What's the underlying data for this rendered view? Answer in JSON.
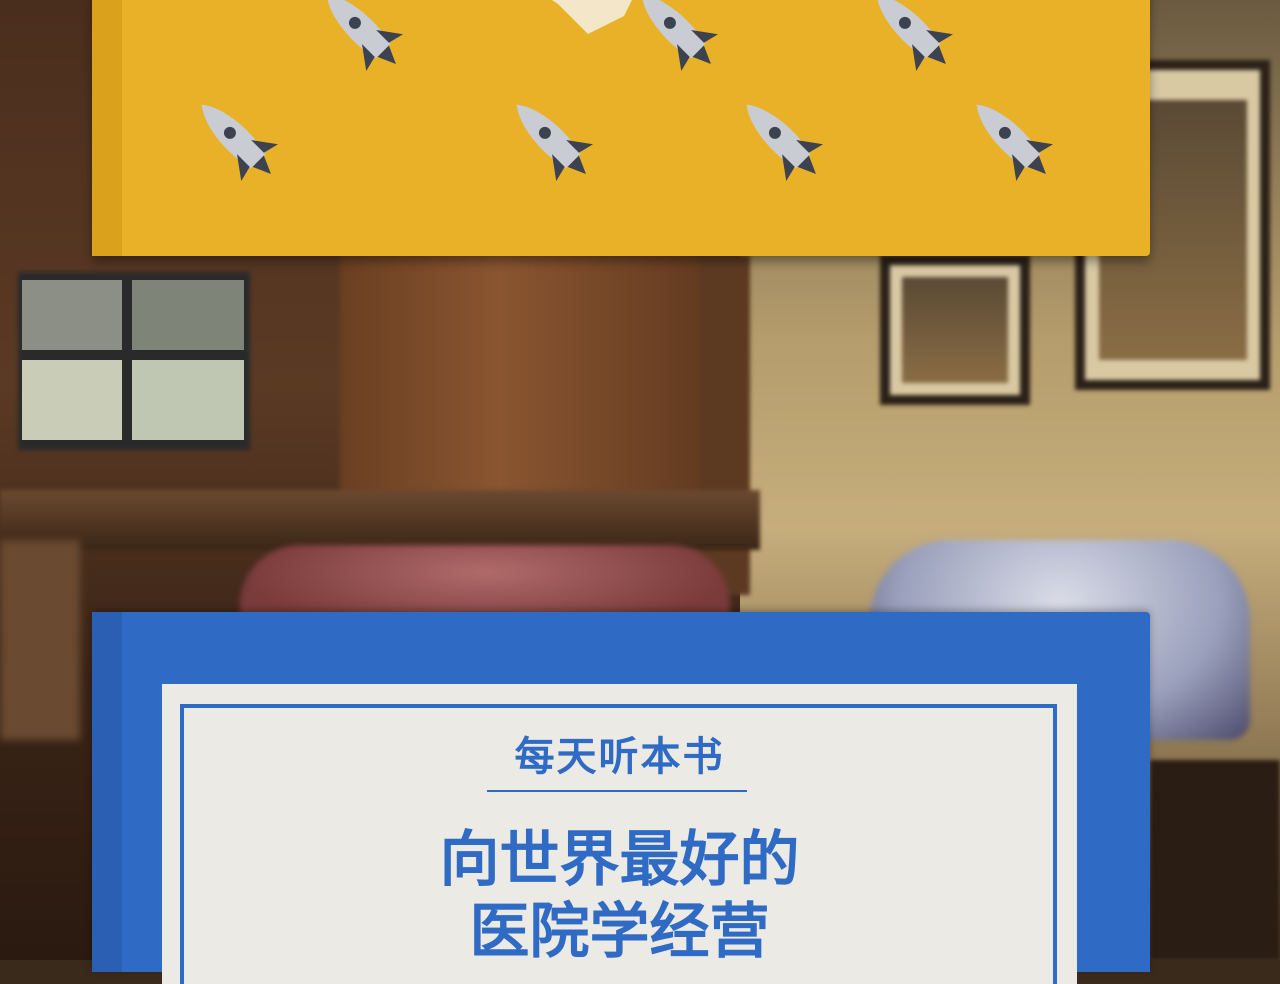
{
  "book_bottom": {
    "series": "每天听本书",
    "title_line1": "向世界最好的",
    "title_line2": "医院学经营"
  },
  "colors": {
    "yellow_cover": "#e8b128",
    "blue_cover": "#2f6bc4",
    "label_paper": "#eceae4"
  },
  "icons": {
    "rocket": "rocket-icon"
  }
}
